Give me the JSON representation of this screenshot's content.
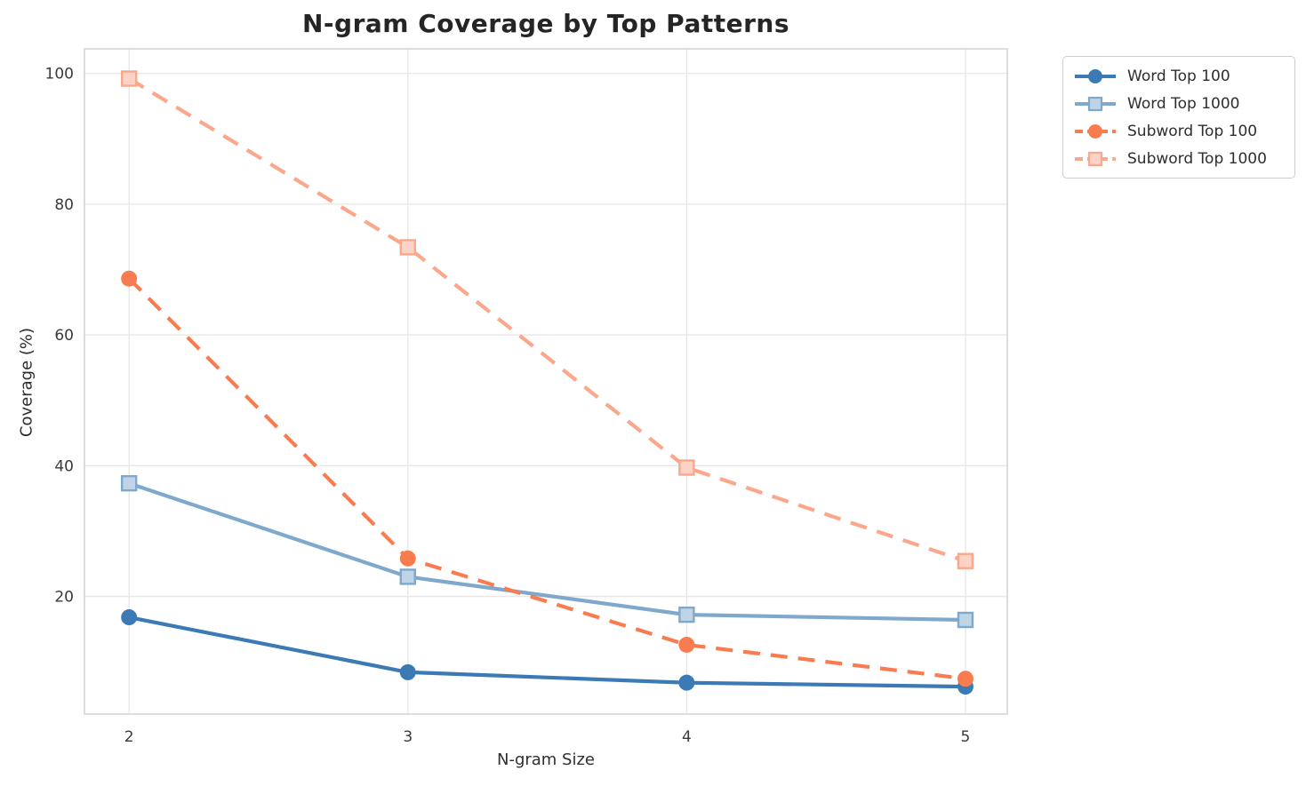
{
  "chart_data": {
    "type": "line",
    "title": "N-gram Coverage by Top Patterns",
    "xlabel": "N-gram Size",
    "ylabel": "Coverage (%)",
    "x": [
      2,
      3,
      4,
      5
    ],
    "xticks": [
      "2",
      "3",
      "4",
      "5"
    ],
    "yticks": [
      20,
      40,
      60,
      80,
      100
    ],
    "xlim": [
      1.84,
      5.15
    ],
    "ylim": [
      2.0,
      103.75
    ],
    "grid": true,
    "legend_position": "outside upper right",
    "series": [
      {
        "name": "Word Top 100",
        "color": "#3c7ab5",
        "marker": "circle",
        "line_style": "solid",
        "values": [
          16.8,
          8.4,
          6.8,
          6.2
        ]
      },
      {
        "name": "Word Top 1000",
        "color": "#7fa8cd",
        "marker": "square",
        "line_style": "solid",
        "values": [
          37.3,
          23.0,
          17.2,
          16.4
        ]
      },
      {
        "name": "Subword Top 100",
        "color": "#f87c50",
        "marker": "circle",
        "line_style": "dashed",
        "values": [
          68.6,
          25.8,
          12.6,
          7.4
        ]
      },
      {
        "name": "Subword Top 1000",
        "color": "#fba78c",
        "marker": "square",
        "line_style": "dashed",
        "values": [
          99.2,
          73.4,
          39.7,
          25.4
        ]
      }
    ]
  },
  "style_colors": {
    "grid": "#e8e8e8",
    "spine": "#d2d2d2",
    "tick_text": "#3a3a3a",
    "title_text": "#252525",
    "legend_border": "#cccccc",
    "background": "#ffffff"
  }
}
